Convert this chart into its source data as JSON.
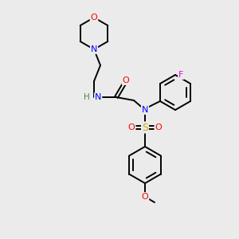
{
  "background_color": "#ebebeb",
  "bond_color": "#000000",
  "atom_colors": {
    "O": "#ff0000",
    "N": "#0000ff",
    "S": "#ccaa00",
    "F": "#ee00ee",
    "H": "#448844",
    "C": "#000000"
  },
  "figsize": [
    3.0,
    3.0
  ],
  "dpi": 100
}
